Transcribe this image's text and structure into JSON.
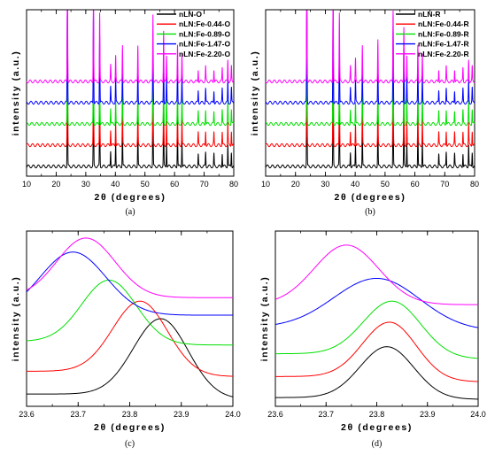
{
  "colors": {
    "black": "#000000",
    "red": "#ff0000",
    "green": "#00e000",
    "blue": "#0000ff",
    "magenta": "#ff00ff"
  },
  "chart_data": [
    {
      "panel": "(a)",
      "type": "line",
      "xlabel": "2θ (degrees)",
      "ylabel": "intensity (a.u.)",
      "xlim": [
        10,
        80
      ],
      "xticks": [
        10,
        20,
        30,
        40,
        50,
        60,
        70,
        80
      ],
      "yticks": false,
      "legend_placement": "top-right",
      "peaks": [
        {
          "x": 23.8,
          "h": 1.0
        },
        {
          "x": 32.6,
          "h": 0.78
        },
        {
          "x": 34.7,
          "h": 0.55
        },
        {
          "x": 38.4,
          "h": 0.13
        },
        {
          "x": 40.1,
          "h": 0.2
        },
        {
          "x": 42.4,
          "h": 0.3
        },
        {
          "x": 47.6,
          "h": 0.3
        },
        {
          "x": 52.7,
          "h": 0.55
        },
        {
          "x": 56.3,
          "h": 0.42
        },
        {
          "x": 57.3,
          "h": 0.2
        },
        {
          "x": 61.0,
          "h": 0.3
        },
        {
          "x": 62.5,
          "h": 0.22
        },
        {
          "x": 68.0,
          "h": 0.1
        },
        {
          "x": 70.5,
          "h": 0.12
        },
        {
          "x": 73.3,
          "h": 0.1
        },
        {
          "x": 76.1,
          "h": 0.11
        },
        {
          "x": 78.0,
          "h": 0.18
        },
        {
          "x": 79.2,
          "h": 0.12
        }
      ],
      "series": [
        {
          "name": "nLN-O",
          "color": "#000000",
          "offset": 0
        },
        {
          "name": "nLN:Fe-0.44-O",
          "color": "#ff0000",
          "offset": 1
        },
        {
          "name": "nLN:Fe-0.89-O",
          "color": "#00e000",
          "offset": 2
        },
        {
          "name": "nLN:Fe-1.47-O",
          "color": "#0000ff",
          "offset": 3
        },
        {
          "name": "nLN:Fe-2.20-O",
          "color": "#ff00ff",
          "offset": 4
        }
      ]
    },
    {
      "panel": "(b)",
      "type": "line",
      "xlabel": "2θ (degrees)",
      "ylabel": "intensity (a.u.)",
      "xlim": [
        10,
        80
      ],
      "xticks": [
        10,
        20,
        30,
        40,
        50,
        60,
        70,
        80
      ],
      "yticks": false,
      "legend_placement": "top-right",
      "peaks": [
        {
          "x": 23.8,
          "h": 1.0
        },
        {
          "x": 32.6,
          "h": 0.88
        },
        {
          "x": 34.7,
          "h": 0.55
        },
        {
          "x": 38.4,
          "h": 0.12
        },
        {
          "x": 40.1,
          "h": 0.18
        },
        {
          "x": 42.4,
          "h": 0.3
        },
        {
          "x": 47.6,
          "h": 0.35
        },
        {
          "x": 52.7,
          "h": 0.62
        },
        {
          "x": 56.3,
          "h": 0.45
        },
        {
          "x": 57.3,
          "h": 0.2
        },
        {
          "x": 61.0,
          "h": 0.3
        },
        {
          "x": 62.5,
          "h": 0.22
        },
        {
          "x": 68.0,
          "h": 0.1
        },
        {
          "x": 70.5,
          "h": 0.12
        },
        {
          "x": 73.3,
          "h": 0.1
        },
        {
          "x": 76.1,
          "h": 0.11
        },
        {
          "x": 78.0,
          "h": 0.18
        },
        {
          "x": 79.2,
          "h": 0.12
        }
      ],
      "series": [
        {
          "name": "nLN-R",
          "color": "#000000",
          "offset": 0
        },
        {
          "name": "nLN:Fe-0.44-R",
          "color": "#ff0000",
          "offset": 1
        },
        {
          "name": "nLN:Fe-0.89-R",
          "color": "#00e000",
          "offset": 2
        },
        {
          "name": "nLN:Fe-1.47-R",
          "color": "#0000ff",
          "offset": 3
        },
        {
          "name": "nLN:Fe-2.20-R",
          "color": "#ff00ff",
          "offset": 4
        }
      ]
    },
    {
      "panel": "(c)",
      "type": "line",
      "xlabel": "2θ (degrees)",
      "ylabel": "intensity (a.u.)",
      "xlim": [
        23.6,
        24.0
      ],
      "xticks": [
        23.6,
        23.7,
        23.8,
        23.9,
        24.0
      ],
      "yticks": false,
      "ylim": [
        0,
        1
      ],
      "series": [
        {
          "color": "#000000",
          "center": 23.86,
          "width": 0.075,
          "base": 0.02,
          "amp": 0.5,
          "left": 0.05,
          "right": 0.02
        },
        {
          "color": "#ff0000",
          "center": 23.82,
          "width": 0.075,
          "base": 0.15,
          "amp": 0.6,
          "left": 0.05,
          "right": 0.02
        },
        {
          "color": "#00e000",
          "center": 23.76,
          "width": 0.075,
          "base": 0.32,
          "amp": 0.72,
          "left": 0.05,
          "right": 0.03
        },
        {
          "color": "#0000ff",
          "center": 23.69,
          "width": 0.09,
          "base": 0.49,
          "amp": 0.88,
          "left": 0.03,
          "right": 0.03
        },
        {
          "color": "#ff00ff",
          "center": 23.715,
          "width": 0.08,
          "base": 0.6,
          "amp": 0.96,
          "left": 0.02,
          "right": 0.02
        }
      ]
    },
    {
      "panel": "(d)",
      "type": "line",
      "xlabel": "2θ (degrees)",
      "ylabel": "intensity (a.u.)",
      "xlim": [
        23.6,
        24.0
      ],
      "xticks": [
        23.6,
        23.7,
        23.8,
        23.9,
        24.0
      ],
      "yticks": false,
      "ylim": [
        0,
        1
      ],
      "series": [
        {
          "color": "#000000",
          "center": 23.82,
          "width": 0.075,
          "base": 0.02,
          "amp": 0.34,
          "left": 0.03,
          "right": 0.02
        },
        {
          "color": "#ff0000",
          "center": 23.825,
          "width": 0.075,
          "base": 0.12,
          "amp": 0.48,
          "left": 0.05,
          "right": 0.02
        },
        {
          "color": "#00e000",
          "center": 23.83,
          "width": 0.08,
          "base": 0.25,
          "amp": 0.6,
          "left": 0.05,
          "right": 0.02
        },
        {
          "color": "#0000ff",
          "center": 23.8,
          "width": 0.12,
          "base": 0.4,
          "amp": 0.73,
          "left": 0.05,
          "right": 0.03
        },
        {
          "color": "#ff00ff",
          "center": 23.74,
          "width": 0.09,
          "base": 0.55,
          "amp": 0.92,
          "left": 0.03,
          "right": 0.03
        }
      ]
    }
  ],
  "panel_labels": [
    "(a)",
    "(b)",
    "(c)",
    "(d)"
  ]
}
